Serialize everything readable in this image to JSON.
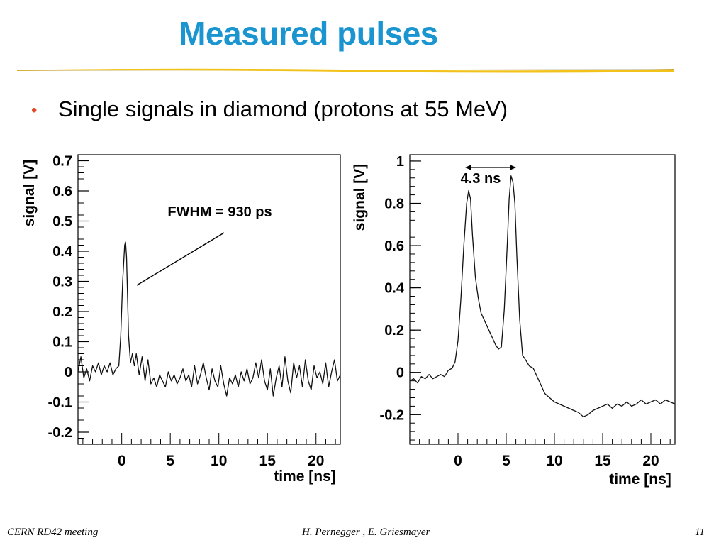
{
  "slide": {
    "title": "Measured pulses",
    "bullet": "Single signals in diamond (protons at 55 MeV)",
    "footer_left": "CERN RD42 meeting",
    "footer_center": "H. Pernegger , E. Griesmayer",
    "footer_right": "11",
    "colors": {
      "title": "#1a95d0",
      "bullet": "#e0492a",
      "rule": "#f2c21a"
    }
  },
  "chart_data": [
    {
      "type": "line",
      "xlabel": "time [ns]",
      "ylabel": "signal [V]",
      "xlim": [
        -4.5,
        22.5
      ],
      "ylim": [
        -0.24,
        0.72
      ],
      "x_ticks": [
        "0",
        "5",
        "10",
        "15",
        "20"
      ],
      "x_tick_values": [
        0,
        5,
        10,
        15,
        20
      ],
      "y_ticks": [
        "0.7",
        "0.6",
        "0.5",
        "0.4",
        "0.3",
        "0.2",
        "0.1",
        "0",
        "-0.1",
        "-0.2"
      ],
      "y_tick_values": [
        0.7,
        0.6,
        0.5,
        0.4,
        0.3,
        0.2,
        0.1,
        0,
        -0.1,
        -0.2
      ],
      "annotation": "FWHM = 930 ps",
      "series": [
        {
          "x": [
            -4.5,
            -4.2,
            -3.9,
            -3.6,
            -3.3,
            -3.0,
            -2.7,
            -2.4,
            -2.1,
            -1.8,
            -1.5,
            -1.2,
            -0.9,
            -0.6,
            -0.3,
            -0.1,
            0.1,
            0.3,
            0.4,
            0.5,
            0.6,
            0.7,
            0.9,
            1.1,
            1.3,
            1.5,
            1.8,
            2.1,
            2.4,
            2.7,
            3.0,
            3.3,
            3.6,
            3.9,
            4.2,
            4.5,
            4.8,
            5.1,
            5.4,
            5.7,
            6.0,
            6.3,
            6.6,
            6.9,
            7.2,
            7.5,
            7.8,
            8.1,
            8.4,
            8.7,
            9.0,
            9.3,
            9.6,
            9.9,
            10.2,
            10.5,
            10.8,
            11.1,
            11.4,
            11.7,
            12.0,
            12.3,
            12.6,
            12.9,
            13.2,
            13.5,
            13.8,
            14.1,
            14.4,
            14.7,
            15.0,
            15.3,
            15.6,
            15.9,
            16.2,
            16.5,
            16.8,
            17.1,
            17.4,
            17.7,
            18.0,
            18.3,
            18.6,
            18.9,
            19.2,
            19.5,
            19.8,
            20.1,
            20.4,
            20.7,
            21.0,
            21.3,
            21.6,
            21.9,
            22.2,
            22.5
          ],
          "y": [
            0.0,
            0.05,
            -0.02,
            0.01,
            -0.03,
            0.02,
            0.0,
            0.03,
            -0.01,
            0.02,
            0.0,
            0.03,
            -0.01,
            0.01,
            0.02,
            0.12,
            0.3,
            0.42,
            0.43,
            0.38,
            0.25,
            0.12,
            0.03,
            0.06,
            0.02,
            0.06,
            -0.01,
            0.05,
            -0.03,
            0.04,
            -0.04,
            -0.02,
            -0.05,
            -0.01,
            -0.03,
            -0.05,
            0.0,
            -0.03,
            -0.01,
            -0.04,
            -0.02,
            0.01,
            -0.03,
            -0.01,
            -0.05,
            0.02,
            -0.04,
            -0.01,
            0.03,
            -0.02,
            -0.06,
            0.01,
            -0.03,
            -0.05,
            0.02,
            -0.04,
            -0.08,
            -0.02,
            -0.04,
            -0.01,
            -0.05,
            0.0,
            -0.03,
            0.01,
            -0.04,
            -0.02,
            0.03,
            -0.02,
            0.04,
            -0.03,
            -0.06,
            0.01,
            -0.08,
            -0.02,
            0.02,
            -0.05,
            0.05,
            -0.03,
            -0.07,
            0.03,
            -0.02,
            0.02,
            -0.05,
            0.04,
            -0.03,
            -0.06,
            0.02,
            -0.02,
            0.0,
            -0.04,
            0.03,
            -0.05,
            0.0,
            0.04,
            -0.03,
            -0.01
          ]
        }
      ]
    },
    {
      "type": "line",
      "xlabel": "time [ns]",
      "ylabel": "signal [V]",
      "xlim": [
        -5,
        22.5
      ],
      "ylim": [
        -0.34,
        1.03
      ],
      "x_ticks": [
        "0",
        "5",
        "10",
        "15",
        "20"
      ],
      "x_tick_values": [
        0,
        5,
        10,
        15,
        20
      ],
      "y_ticks": [
        "1",
        "0.8",
        "0.6",
        "0.4",
        "0.2",
        "0",
        "-0.2"
      ],
      "y_tick_values": [
        1,
        0.8,
        0.6,
        0.4,
        0.2,
        0,
        -0.2
      ],
      "annotation": "4.3 ns",
      "series": [
        {
          "x": [
            -5,
            -4.6,
            -4.2,
            -3.8,
            -3.4,
            -3.0,
            -2.6,
            -2.2,
            -1.8,
            -1.4,
            -1.0,
            -0.6,
            -0.3,
            0.0,
            0.3,
            0.6,
            0.9,
            1.1,
            1.3,
            1.5,
            1.8,
            2.1,
            2.4,
            2.7,
            3.0,
            3.3,
            3.6,
            3.9,
            4.2,
            4.5,
            4.8,
            5.1,
            5.3,
            5.5,
            5.7,
            5.9,
            6.1,
            6.4,
            6.7,
            7.0,
            7.4,
            7.8,
            8.2,
            8.6,
            9.0,
            9.5,
            10.0,
            10.5,
            11.0,
            11.5,
            12.0,
            12.5,
            13.0,
            13.5,
            14.0,
            14.5,
            15.0,
            15.5,
            16.0,
            16.5,
            17.0,
            17.5,
            18.0,
            18.5,
            19.0,
            19.5,
            20.0,
            20.5,
            21.0,
            21.5,
            22.0,
            22.5
          ],
          "y": [
            -0.04,
            -0.03,
            -0.05,
            -0.02,
            -0.03,
            -0.01,
            -0.03,
            -0.02,
            -0.01,
            -0.02,
            0.01,
            0.02,
            0.05,
            0.15,
            0.35,
            0.6,
            0.8,
            0.86,
            0.82,
            0.65,
            0.45,
            0.35,
            0.28,
            0.25,
            0.22,
            0.19,
            0.16,
            0.13,
            0.11,
            0.12,
            0.3,
            0.6,
            0.82,
            0.93,
            0.9,
            0.8,
            0.55,
            0.25,
            0.08,
            0.06,
            0.03,
            0.02,
            -0.02,
            -0.06,
            -0.1,
            -0.12,
            -0.14,
            -0.15,
            -0.16,
            -0.17,
            -0.18,
            -0.19,
            -0.21,
            -0.2,
            -0.18,
            -0.17,
            -0.16,
            -0.15,
            -0.17,
            -0.15,
            -0.16,
            -0.14,
            -0.16,
            -0.15,
            -0.13,
            -0.15,
            -0.14,
            -0.13,
            -0.15,
            -0.13,
            -0.14,
            -0.15
          ]
        }
      ]
    }
  ]
}
